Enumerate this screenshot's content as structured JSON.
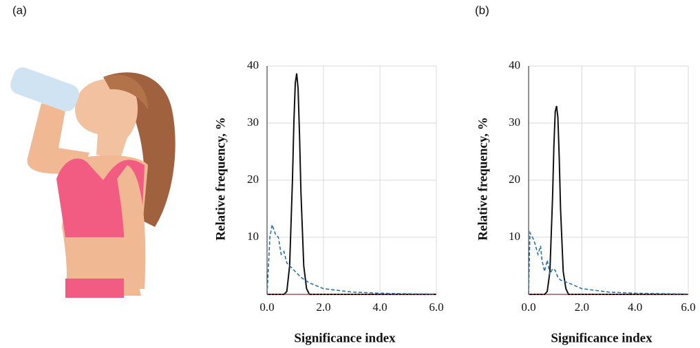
{
  "chart_data": [
    {
      "type": "line",
      "label": "(a)",
      "x_label": "Significance index",
      "y_label": "Relative frequency, %",
      "xlim": [
        0,
        6
      ],
      "ylim": [
        0,
        40
      ],
      "xticks": [
        {
          "value": 0,
          "label": "0.0"
        },
        {
          "value": 2,
          "label": "2.0"
        },
        {
          "value": 4,
          "label": "4.0"
        },
        {
          "value": 6,
          "label": "6.0"
        }
      ],
      "yticks": [
        10,
        20,
        30,
        40
      ],
      "grid": true,
      "series": [
        {
          "color": "#111111",
          "style": "solid",
          "x": [
            0,
            0.6,
            0.7,
            0.8,
            0.9,
            0.95,
            1.0,
            1.05,
            1.1,
            1.15,
            1.2,
            1.3,
            1.4,
            1.5,
            6.0
          ],
          "values": [
            0,
            0,
            0.5,
            5,
            20,
            30,
            37,
            38.7,
            36,
            28,
            18,
            5,
            1,
            0,
            0
          ]
        },
        {
          "color": "#2a6fa8",
          "style": "dashed",
          "x": [
            0,
            0.1,
            0.18,
            0.3,
            0.4,
            0.5,
            0.6,
            0.7,
            0.8,
            1.0,
            1.2,
            1.5,
            2.0,
            2.5,
            3.0,
            4.0,
            5.0,
            6.0
          ],
          "values": [
            0,
            10,
            12.2,
            10.5,
            10,
            7,
            7.5,
            5.5,
            5,
            4,
            3,
            2,
            1,
            0.7,
            0.4,
            0.2,
            0.1,
            0.05
          ]
        },
        {
          "color": "#d04040",
          "style": "dotted",
          "x": [
            0,
            6
          ],
          "values": [
            0,
            0
          ]
        }
      ]
    },
    {
      "type": "line",
      "label": "(b)",
      "x_label": "Significance index",
      "y_label": "Relative frequency, %",
      "xlim": [
        0,
        6
      ],
      "ylim": [
        0,
        40
      ],
      "xticks": [
        {
          "value": 0,
          "label": "0.0"
        },
        {
          "value": 2,
          "label": "2.0"
        },
        {
          "value": 4,
          "label": "4.0"
        },
        {
          "value": 6,
          "label": "6.0"
        }
      ],
      "yticks": [
        10,
        20,
        30,
        40
      ],
      "grid": true,
      "series": [
        {
          "color": "#111111",
          "style": "solid",
          "x": [
            0,
            0.6,
            0.7,
            0.8,
            0.9,
            0.95,
            1.0,
            1.05,
            1.1,
            1.15,
            1.2,
            1.3,
            1.4,
            1.5,
            6.0
          ],
          "values": [
            0,
            0,
            0.5,
            4,
            17,
            26,
            32,
            33,
            31,
            24,
            15,
            4,
            1,
            0,
            0
          ]
        },
        {
          "color": "#2a6fa8",
          "style": "dashed",
          "x": [
            0,
            0.05,
            0.2,
            0.35,
            0.45,
            0.5,
            0.6,
            0.7,
            0.8,
            0.9,
            1.0,
            1.1,
            1.2,
            1.5,
            2.0,
            2.5,
            3.0,
            4.0,
            6.0
          ],
          "values": [
            0,
            10.8,
            9.5,
            7,
            8.5,
            6,
            4,
            6,
            3.5,
            4.5,
            4.2,
            3,
            2.5,
            2,
            1,
            0.7,
            0.4,
            0.2,
            0.05
          ]
        },
        {
          "color": "#d04040",
          "style": "dotted",
          "x": [
            0,
            6
          ],
          "values": [
            0,
            0
          ]
        }
      ]
    }
  ]
}
